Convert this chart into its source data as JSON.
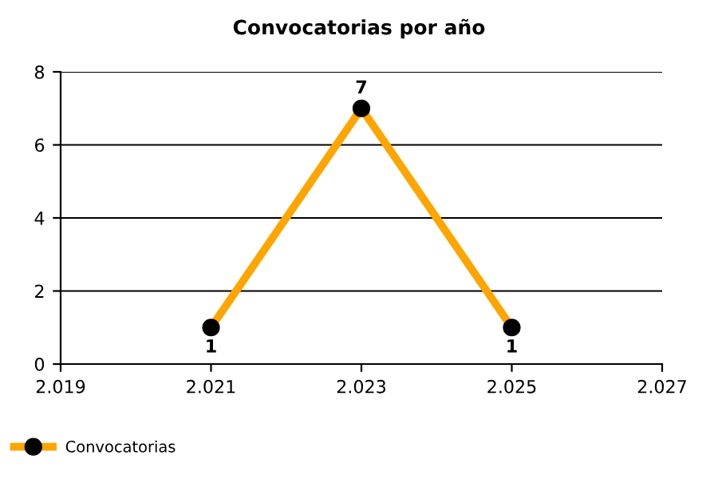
{
  "chart_data": {
    "type": "line",
    "title": "Convocatorias por año",
    "x": [
      2021,
      2023,
      2025
    ],
    "series": [
      {
        "name": "Convocatorias",
        "color": "#ffa500",
        "values": [
          1,
          7,
          1
        ]
      }
    ],
    "xlim": [
      2019,
      2027
    ],
    "xticks": [
      {
        "value": 2019,
        "label": "2.019"
      },
      {
        "value": 2021,
        "label": "2.021"
      },
      {
        "value": 2023,
        "label": "2.023"
      },
      {
        "value": 2025,
        "label": "2.025"
      },
      {
        "value": 2027,
        "label": "2.027"
      }
    ],
    "ylim": [
      0,
      8
    ],
    "yticks": [
      0,
      2,
      4,
      6,
      8
    ],
    "grid": "y",
    "legend": "bottom left",
    "marker": "circle",
    "line_style": "solid",
    "data_labels": true
  }
}
